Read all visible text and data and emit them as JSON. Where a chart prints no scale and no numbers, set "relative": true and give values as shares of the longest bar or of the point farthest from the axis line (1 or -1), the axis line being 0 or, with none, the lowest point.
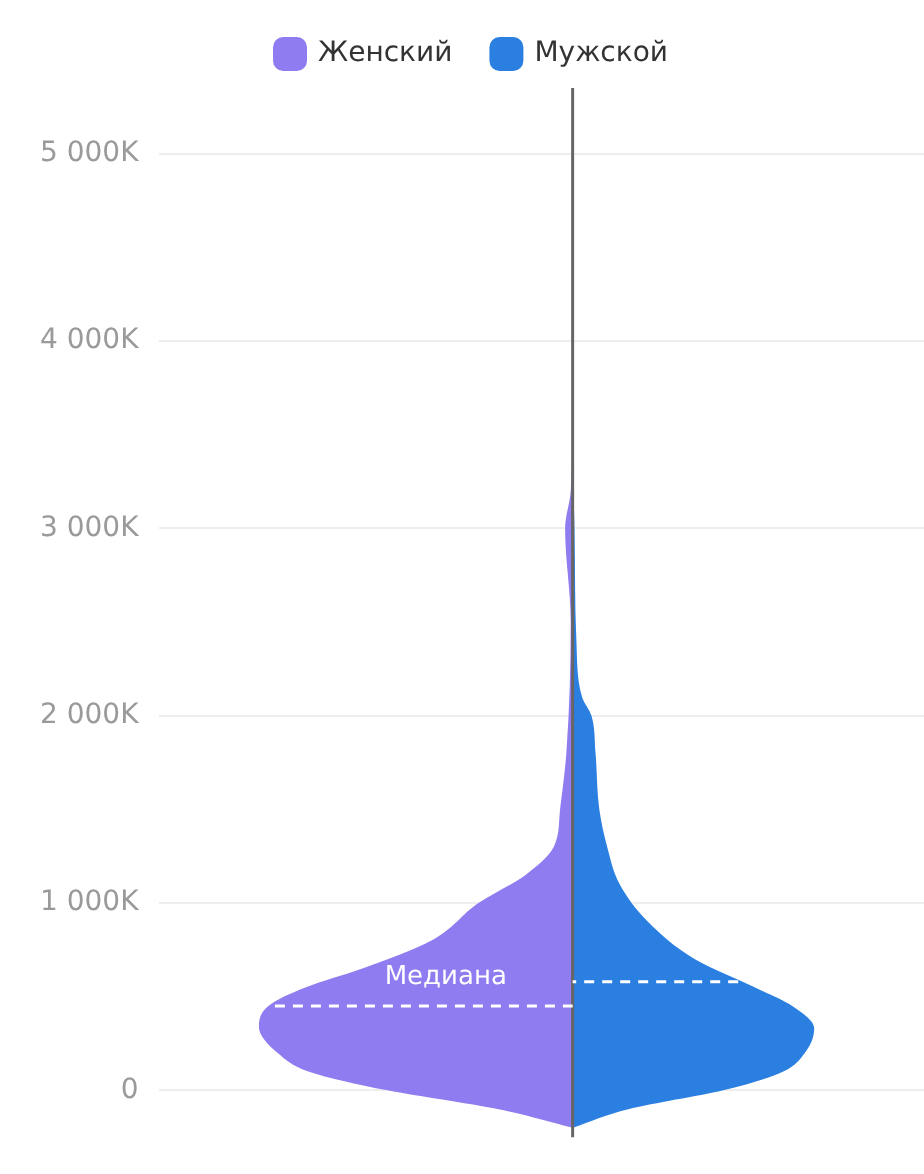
{
  "chart_data": {
    "type": "area",
    "orientation": "horizontal",
    "relative": true,
    "ylim": [
      -250,
      5350
    ],
    "yticks": [
      {
        "value": 0,
        "label": "0"
      },
      {
        "value": 1000,
        "label": "1 000K"
      },
      {
        "value": 2000,
        "label": "2 000K"
      },
      {
        "value": 3000,
        "label": "3 000K"
      },
      {
        "value": 4000,
        "label": "4 000K"
      },
      {
        "value": 5000,
        "label": "5 000K"
      }
    ],
    "grid": "y",
    "legend": "top",
    "series": [
      {
        "name": "Женский",
        "color": "#8e7cf0",
        "x": [
          -200,
          -100,
          0,
          100,
          200,
          340,
          450,
          550,
          650,
          800,
          1000,
          1150,
          1300,
          1500,
          1800,
          2500,
          3000,
          3200,
          3700
        ],
        "values": [
          0,
          -0.24,
          -0.59,
          -0.84,
          -0.94,
          -1,
          -0.97,
          -0.85,
          -0.67,
          -0.45,
          -0.3,
          -0.15,
          -0.06,
          -0.04,
          -0.02,
          -0.006,
          -0.024,
          -0.006,
          0
        ]
      },
      {
        "name": "Мужской",
        "color": "#2b7fe0",
        "x": [
          -200,
          -100,
          0,
          100,
          200,
          330,
          450,
          550,
          700,
          900,
          1100,
          1300,
          1500,
          1800,
          2000,
          2100,
          2400,
          3000,
          3300
        ],
        "values": [
          0,
          0.18,
          0.48,
          0.67,
          0.74,
          0.77,
          0.7,
          0.58,
          0.39,
          0.24,
          0.15,
          0.11,
          0.085,
          0.073,
          0.06,
          0.03,
          0.012,
          0.006,
          0
        ]
      }
    ],
    "ref_lines": [
      {
        "axis": "y",
        "value": 450,
        "label": "Медиана",
        "color": "#ffffff",
        "line_style": "dashed"
      },
      {
        "axis": "y",
        "value": 580,
        "color": "#ffffff",
        "line_style": "dashed"
      }
    ]
  }
}
